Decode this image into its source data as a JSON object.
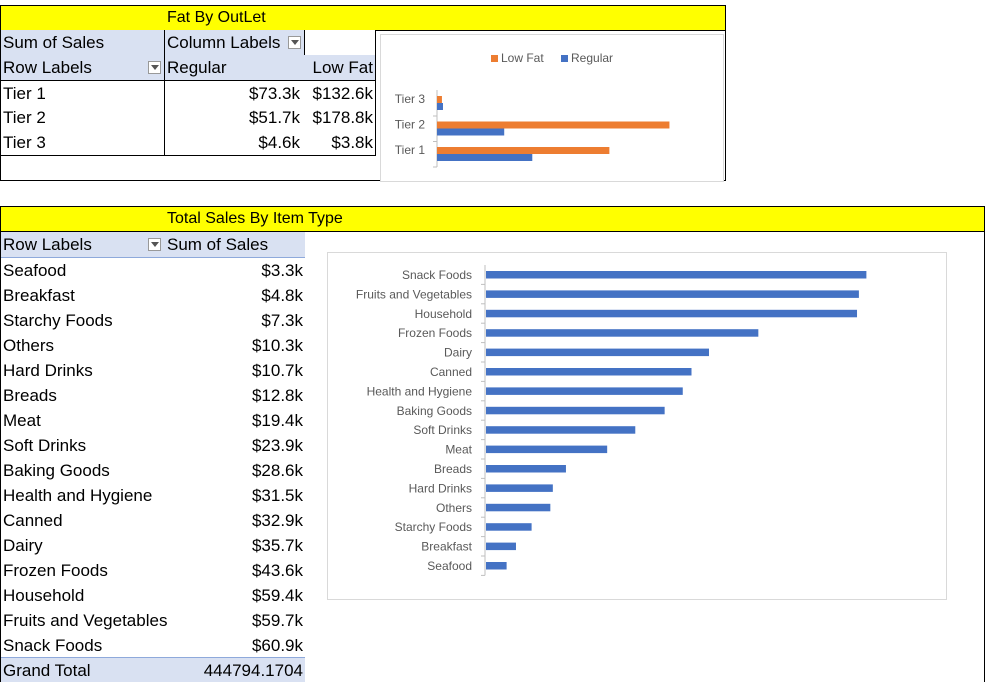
{
  "fat_panel": {
    "title": "Fat By OutLet",
    "corner_label": "Sum of Sales",
    "column_labels": "Column Labels",
    "row_labels": "Row Labels",
    "col_headers": [
      "Regular",
      "Low Fat"
    ],
    "rows": [
      {
        "label": "Tier 1",
        "regular": "$73.3k",
        "low_fat": "$132.6k"
      },
      {
        "label": "Tier 2",
        "regular": "$51.7k",
        "low_fat": "$178.8k"
      },
      {
        "label": "Tier 3",
        "regular": "$4.6k",
        "low_fat": "$3.8k"
      }
    ]
  },
  "item_panel": {
    "title": "Total Sales By Item Type",
    "row_labels": "Row Labels",
    "value_header": "Sum of Sales",
    "rows": [
      {
        "label": "Seafood",
        "value": "$3.3k"
      },
      {
        "label": "Breakfast",
        "value": "$4.8k"
      },
      {
        "label": "Starchy Foods",
        "value": "$7.3k"
      },
      {
        "label": "Others",
        "value": "$10.3k"
      },
      {
        "label": "Hard Drinks",
        "value": "$10.7k"
      },
      {
        "label": "Breads",
        "value": "$12.8k"
      },
      {
        "label": "Meat",
        "value": "$19.4k"
      },
      {
        "label": "Soft Drinks",
        "value": "$23.9k"
      },
      {
        "label": "Baking Goods",
        "value": "$28.6k"
      },
      {
        "label": "Health and Hygiene",
        "value": "$31.5k"
      },
      {
        "label": "Canned",
        "value": "$32.9k"
      },
      {
        "label": "Dairy",
        "value": "$35.7k"
      },
      {
        "label": "Frozen Foods",
        "value": "$43.6k"
      },
      {
        "label": "Household",
        "value": "$59.4k"
      },
      {
        "label": "Fruits and Vegetables",
        "value": "$59.7k"
      },
      {
        "label": "Snack Foods",
        "value": "$60.9k"
      }
    ],
    "grand_total_label": "Grand Total",
    "grand_total_value": "444794.1704"
  },
  "colors": {
    "regular": "#4472c4",
    "low_fat": "#ed7d31",
    "title_fill": "#ffff00",
    "header_fill": "#d9e1f2"
  },
  "chart_data": [
    {
      "type": "bar",
      "orientation": "horizontal",
      "categories": [
        "Tier 1",
        "Tier 2",
        "Tier 3"
      ],
      "series": [
        {
          "name": "Low Fat",
          "values": [
            132.6,
            178.8,
            3.8
          ]
        },
        {
          "name": "Regular",
          "values": [
            73.3,
            51.7,
            4.6
          ]
        }
      ],
      "legend": "top",
      "grid": false
    },
    {
      "type": "bar",
      "orientation": "horizontal",
      "categories": [
        "Seafood",
        "Breakfast",
        "Starchy Foods",
        "Others",
        "Hard Drinks",
        "Breads",
        "Meat",
        "Soft Drinks",
        "Baking Goods",
        "Health and Hygiene",
        "Canned",
        "Dairy",
        "Frozen Foods",
        "Household",
        "Fruits and Vegetables",
        "Snack Foods"
      ],
      "series": [
        {
          "values": [
            3.3,
            4.8,
            7.3,
            10.3,
            10.7,
            12.8,
            19.4,
            23.9,
            28.6,
            31.5,
            32.9,
            35.7,
            43.6,
            59.4,
            59.7,
            60.9
          ]
        }
      ],
      "legend": "none",
      "grid": false
    }
  ]
}
